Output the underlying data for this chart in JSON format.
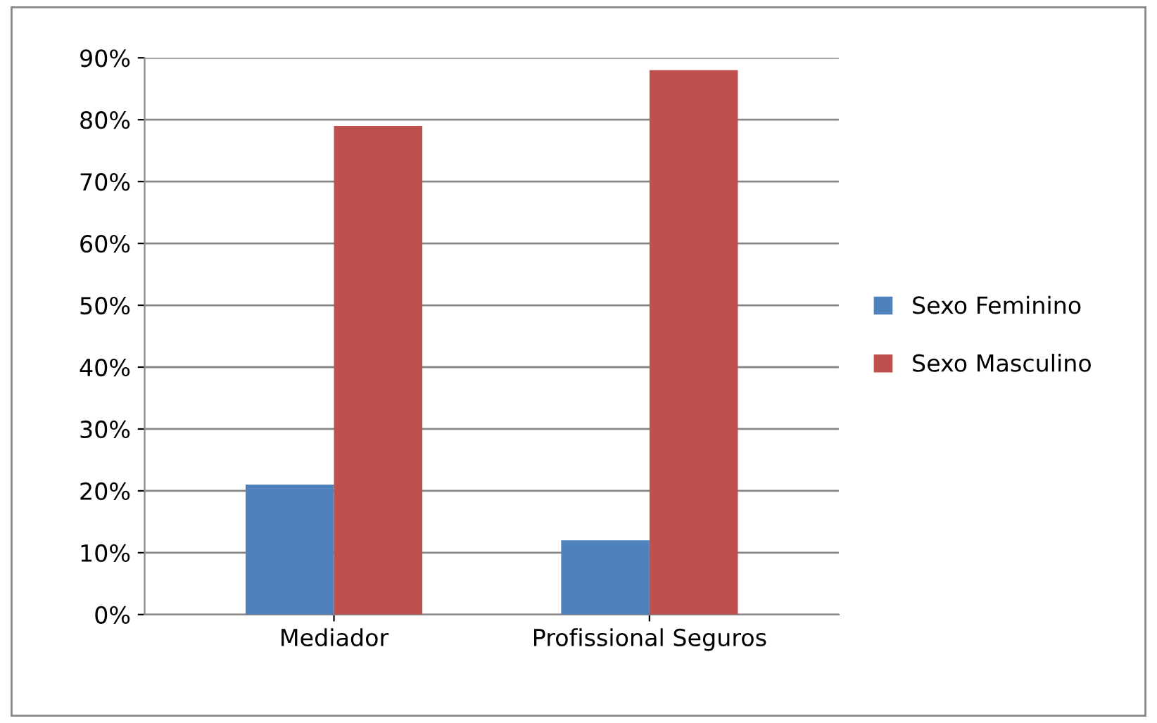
{
  "chart_data": {
    "type": "bar",
    "categories": [
      "Mediador",
      "Profissional Seguros"
    ],
    "series": [
      {
        "name": "Sexo Feminino",
        "color": "#4f81bd",
        "values": [
          21,
          12
        ]
      },
      {
        "name": "Sexo Masculino",
        "color": "#c0504d",
        "values": [
          79,
          88
        ]
      }
    ],
    "ylim": [
      0,
      90
    ],
    "yticks": [
      {
        "value": 0,
        "label": "0%"
      },
      {
        "value": 10,
        "label": "10%"
      },
      {
        "value": 20,
        "label": "20%"
      },
      {
        "value": 30,
        "label": "30%"
      },
      {
        "value": 40,
        "label": "40%"
      },
      {
        "value": 50,
        "label": "50%"
      },
      {
        "value": 60,
        "label": "60%"
      },
      {
        "value": 70,
        "label": "70%"
      },
      {
        "value": 80,
        "label": "80%"
      },
      {
        "value": 90,
        "label": "90%"
      }
    ],
    "grid": "y",
    "legend": "right"
  }
}
